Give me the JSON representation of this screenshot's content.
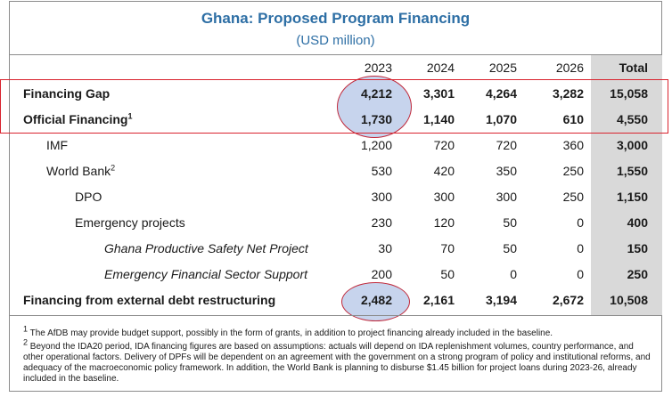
{
  "title": "Ghana: Proposed Program Financing",
  "subtitle": "(USD million)",
  "columns": [
    "2023",
    "2024",
    "2025",
    "2026",
    "Total"
  ],
  "rows": [
    {
      "label": "Financing Gap",
      "sup": "",
      "values": [
        "4,212",
        "3,301",
        "4,264",
        "3,282",
        "15,058"
      ]
    },
    {
      "label": "Official Financing",
      "sup": "1",
      "values": [
        "1,730",
        "1,140",
        "1,070",
        "610",
        "4,550"
      ]
    },
    {
      "label": "IMF",
      "sup": "",
      "values": [
        "1,200",
        "720",
        "720",
        "360",
        "3,000"
      ]
    },
    {
      "label": "World Bank",
      "sup": "2",
      "values": [
        "530",
        "420",
        "350",
        "250",
        "1,550"
      ]
    },
    {
      "label": "DPO",
      "sup": "",
      "values": [
        "300",
        "300",
        "300",
        "250",
        "1,150"
      ]
    },
    {
      "label": "Emergency projects",
      "sup": "",
      "values": [
        "230",
        "120",
        "50",
        "0",
        "400"
      ]
    },
    {
      "label": "Ghana Productive Safety Net Project",
      "sup": "",
      "values": [
        "30",
        "70",
        "50",
        "0",
        "150"
      ]
    },
    {
      "label": "Emergency Financial Sector Support",
      "sup": "",
      "values": [
        "200",
        "50",
        "0",
        "0",
        "250"
      ]
    },
    {
      "label": "Financing from external debt restructuring",
      "sup": "",
      "values": [
        "2,482",
        "2,161",
        "3,194",
        "2,672",
        "10,508"
      ]
    }
  ],
  "footnotes": {
    "fn1_mark": "1",
    "fn1": "The AfDB may provide budget support, possibly in the form of grants, in addition to project financing already included in the baseline.",
    "fn2_mark": "2",
    "fn2": "Beyond the IDA20 period, IDA financing figures are based on assumptions: actuals will depend on IDA replenishment volumes, country performance, and other operational factors. Delivery of DPFs will be dependent on an agreement with the government on a strong program of policy and institutional reforms, and adequacy of the macroeconomic policy framework. In addition, the World Bank is planning to disburse $1.45 billion for project loans during 2023-26, already included in the baseline."
  },
  "colors": {
    "title": "#2e6fa5",
    "highlight_box": "#d9232e",
    "ellipse_fill": "#82a0d7",
    "total_column": "#d9d9d9"
  }
}
